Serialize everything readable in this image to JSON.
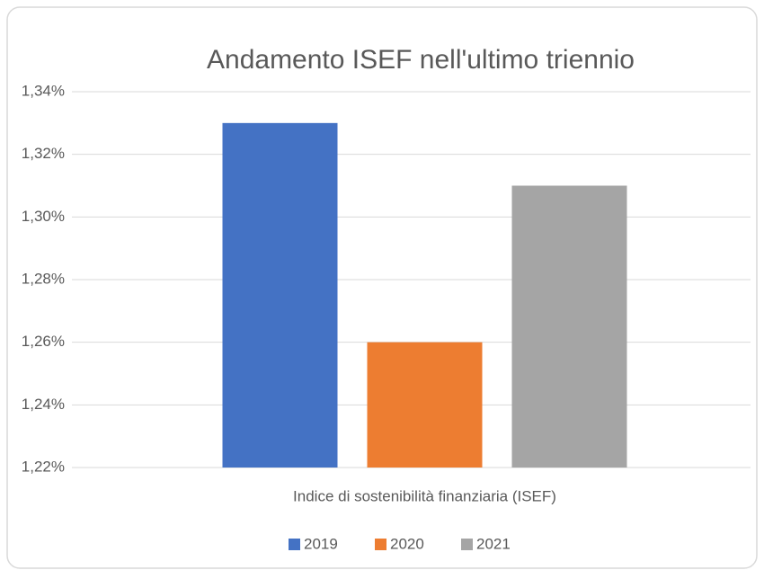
{
  "chart_data": {
    "type": "bar",
    "title": "Andamento ISEF nell'ultimo triennio",
    "categories": [
      "Indice di sostenibilità finanziaria (ISEF)"
    ],
    "series": [
      {
        "name": "2019",
        "color": "#4472c4",
        "values": [
          1.33
        ]
      },
      {
        "name": "2020",
        "color": "#ed7d31",
        "values": [
          1.26
        ]
      },
      {
        "name": "2021",
        "color": "#a5a5a5",
        "values": [
          1.31
        ]
      }
    ],
    "ylim": [
      1.22,
      1.34
    ],
    "yticks": [
      {
        "value": 1.22,
        "label": "1,22%"
      },
      {
        "value": 1.24,
        "label": "1,24%"
      },
      {
        "value": 1.26,
        "label": "1,26%"
      },
      {
        "value": 1.28,
        "label": "1,28%"
      },
      {
        "value": 1.3,
        "label": "1,30%"
      },
      {
        "value": 1.32,
        "label": "1,32%"
      },
      {
        "value": 1.34,
        "label": "1,34%"
      }
    ],
    "grid": true,
    "legend": "bottom"
  }
}
